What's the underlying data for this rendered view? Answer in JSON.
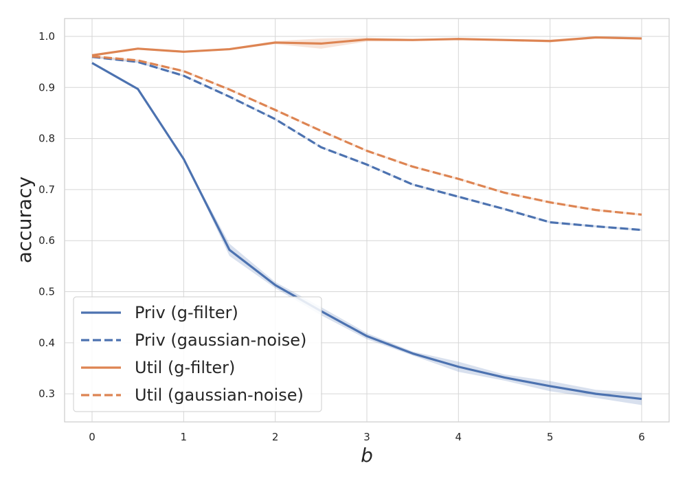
{
  "chart_data": {
    "type": "line",
    "title": "",
    "xlabel": "b",
    "ylabel": "accuracy",
    "xlim": [
      -0.3,
      6.3
    ],
    "ylim": [
      0.245,
      1.035
    ],
    "xticks": [
      0,
      1,
      2,
      3,
      4,
      5,
      6
    ],
    "yticks": [
      0.3,
      0.4,
      0.5,
      0.6,
      0.7,
      0.8,
      0.9,
      1.0
    ],
    "grid": true,
    "legend_position": "lower-left",
    "x": [
      0,
      0.5,
      1,
      1.5,
      2,
      2.5,
      3,
      3.5,
      4,
      4.5,
      5,
      5.5,
      6
    ],
    "series": [
      {
        "name": "Priv (g-filter)",
        "color": "#4c72b0",
        "style": "solid",
        "values": [
          0.948,
          0.897,
          0.76,
          0.582,
          0.513,
          0.462,
          0.413,
          0.379,
          0.353,
          0.332,
          0.315,
          0.3,
          0.29
        ],
        "band": [
          0.0,
          0.0,
          0.0,
          0.012,
          0.006,
          0.008,
          0.006,
          0.004,
          0.01,
          0.006,
          0.01,
          0.008,
          0.012
        ]
      },
      {
        "name": "Priv (gaussian-noise)",
        "color": "#4c72b0",
        "style": "dashed",
        "values": [
          0.96,
          0.95,
          0.923,
          0.882,
          0.838,
          0.783,
          0.749,
          0.71,
          0.686,
          0.662,
          0.636,
          0.628,
          0.621
        ],
        "band": [
          0.002,
          0.002,
          0.002,
          0.002,
          0.002,
          0.002,
          0.002,
          0.002,
          0.002,
          0.002,
          0.002,
          0.002,
          0.002
        ]
      },
      {
        "name": "Util (g-filter)",
        "color": "#dd8452",
        "style": "solid",
        "values": [
          0.963,
          0.976,
          0.97,
          0.975,
          0.988,
          0.986,
          0.994,
          0.993,
          0.995,
          0.993,
          0.991,
          0.998,
          0.996
        ],
        "band": [
          0.002,
          0.002,
          0.002,
          0.002,
          0.003,
          0.01,
          0.004,
          0.002,
          0.002,
          0.002,
          0.003,
          0.002,
          0.002
        ]
      },
      {
        "name": "Util (gaussian-noise)",
        "color": "#dd8452",
        "style": "dashed",
        "values": [
          0.961,
          0.953,
          0.932,
          0.896,
          0.856,
          0.815,
          0.776,
          0.745,
          0.721,
          0.694,
          0.675,
          0.66,
          0.651
        ],
        "band": [
          0.002,
          0.002,
          0.002,
          0.002,
          0.002,
          0.002,
          0.002,
          0.002,
          0.002,
          0.002,
          0.002,
          0.002,
          0.002
        ]
      }
    ]
  }
}
